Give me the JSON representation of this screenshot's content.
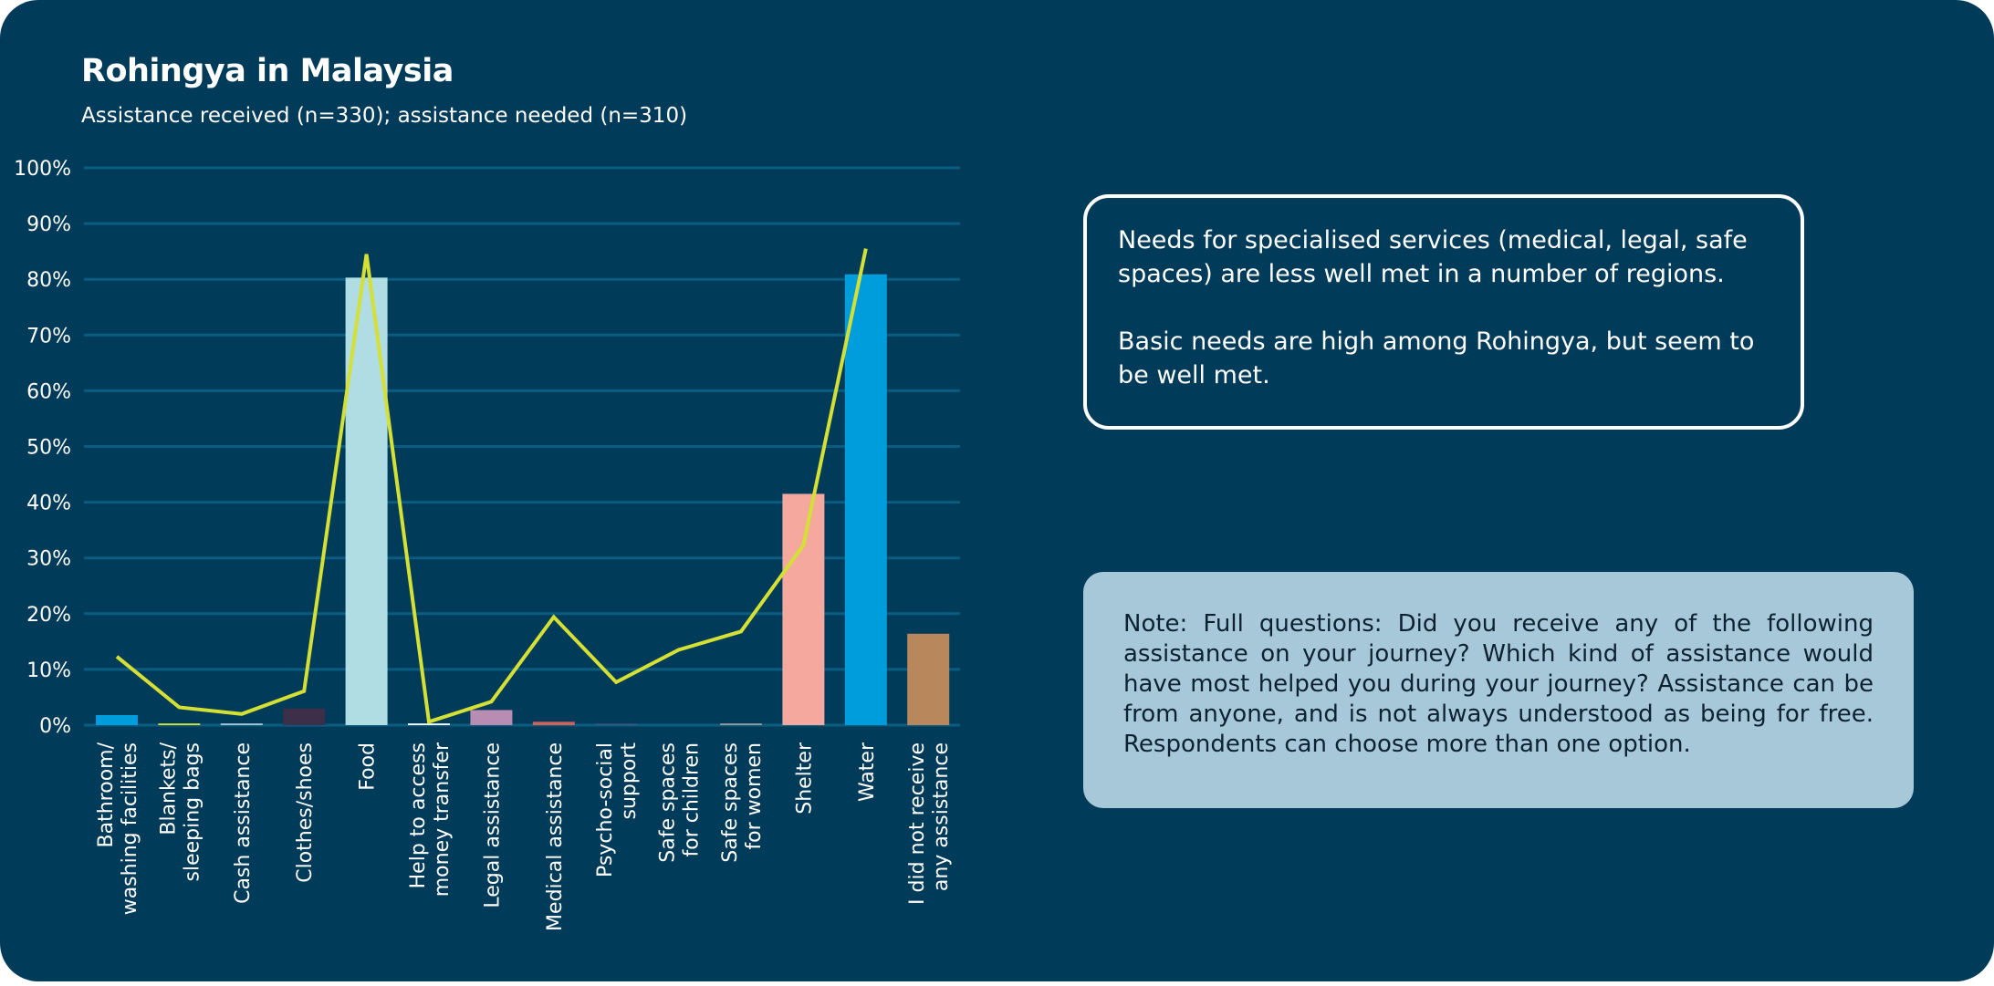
{
  "title": "Rohingya in Malaysia",
  "subtitle": "Assistance received (n=330); assistance needed (n=310)",
  "callout": {
    "paragraph1": "Needs for specialised services (medical, legal, safe spaces) are less well met in a number of regions.",
    "paragraph2": "Basic needs are high among Rohingya, but seem to be well met."
  },
  "note": "Note: Full questions: Did you receive any of the following assistance on your journey? Which kind of assistance would have most helped you during your journey? Assistance can be from anyone, and is not always understood as being for free. Respondents can choose more than one option.",
  "colors": {
    "background": "#003b5a",
    "gridline": "#0a5c80",
    "line": "#d4e033",
    "note_box": "#a7c8d8"
  },
  "chart_data": {
    "type": "bar",
    "ylim": [
      0,
      100
    ],
    "yticks": [
      "0%",
      "10%",
      "20%",
      "30%",
      "40%",
      "50%",
      "60%",
      "70%",
      "80%",
      "90%",
      "100%"
    ],
    "grid": true,
    "categories": [
      [
        "Bathroom/",
        "washing facilities"
      ],
      [
        "Blankets/",
        "sleeping bags"
      ],
      [
        "Cash assistance"
      ],
      [
        "Clothes/shoes"
      ],
      [
        "Food"
      ],
      [
        "Help to access",
        "money transfer"
      ],
      [
        "Legal assistance"
      ],
      [
        "Medical assistance"
      ],
      [
        "Psycho-social",
        "support"
      ],
      [
        "Safe spaces",
        "for children"
      ],
      [
        "Safe spaces",
        "for women"
      ],
      [
        "Shelter"
      ],
      [
        "Water"
      ],
      [
        "I did not receive",
        "any assistance"
      ]
    ],
    "series": [
      {
        "kind": "bar",
        "values": [
          1.8,
          0.3,
          0.3,
          3.0,
          80.3,
          0.3,
          2.7,
          0.6,
          0.1,
          0.1,
          0.3,
          41.5,
          80.9,
          16.4
        ],
        "colors": [
          "#009ddc",
          "#d4e033",
          "#a7c8d8",
          "#3d2e4a",
          "#b0dde3",
          "#ffffff",
          "#b98cb3",
          "#d4605a",
          "#3d5a80",
          "#0a5c80",
          "#9a9a9a",
          "#f4a89e",
          "#009ddc",
          "#b8875c"
        ]
      },
      {
        "kind": "line",
        "values": [
          12.3,
          3.2,
          2.0,
          6.1,
          84.5,
          0.6,
          4.2,
          19.4,
          7.7,
          13.5,
          16.8,
          32.3,
          85.5,
          null
        ]
      }
    ]
  }
}
